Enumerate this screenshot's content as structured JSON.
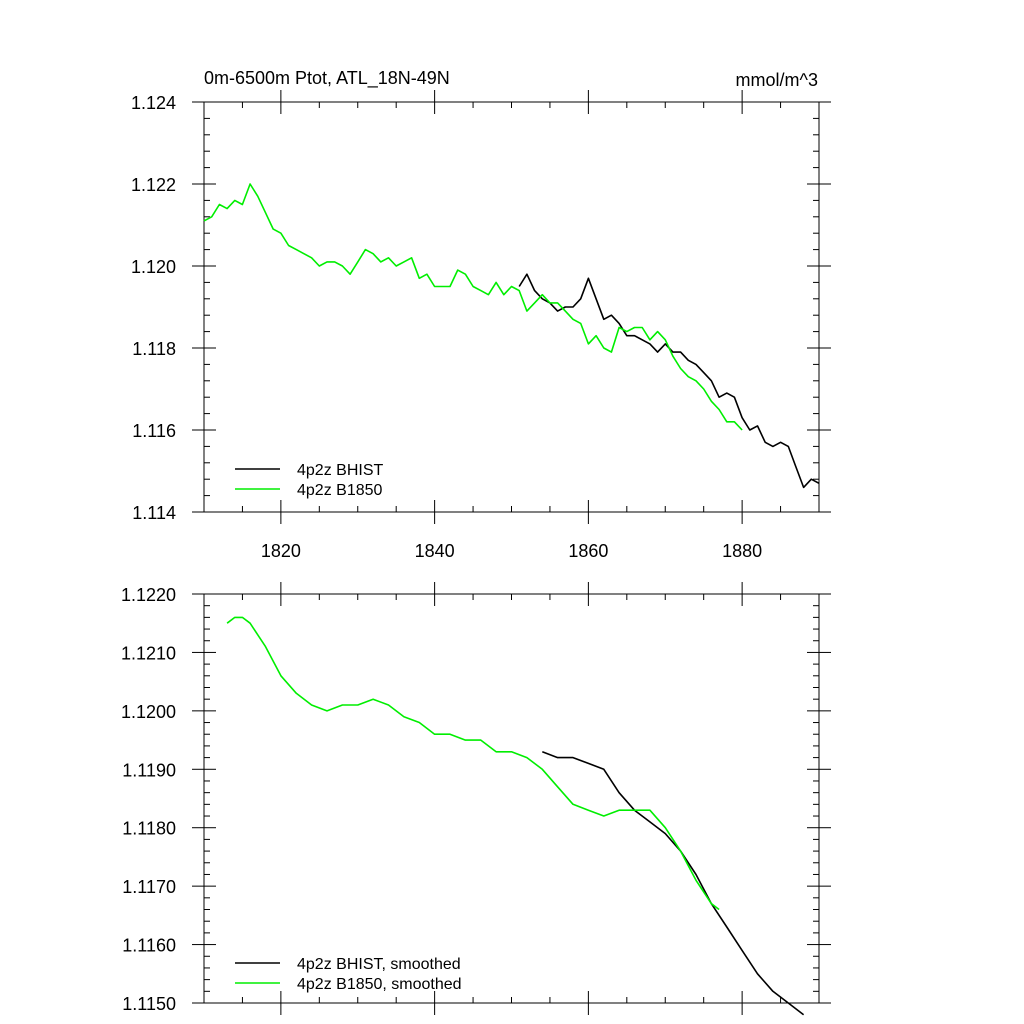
{
  "chart_data": [
    {
      "type": "line",
      "title": "0m-6500m Ptot, ATL_18N-49N",
      "units": "mmol/m^3",
      "xlim": [
        1810,
        1890
      ],
      "ylim": [
        1.114,
        1.124
      ],
      "xticks": [
        1820,
        1840,
        1860,
        1880
      ],
      "xtick_labels": [
        "1820",
        "1840",
        "1860",
        "1880"
      ],
      "yticks": [
        1.114,
        1.116,
        1.118,
        1.12,
        1.122,
        1.124
      ],
      "ytick_labels": [
        "1.114",
        "1.116",
        "1.118",
        "1.120",
        "1.122",
        "1.124"
      ],
      "legend_position": "bottom-left",
      "series": [
        {
          "name": "4p2z BHIST",
          "color": "#000000",
          "x": [
            1851,
            1852,
            1853,
            1854,
            1855,
            1856,
            1857,
            1858,
            1859,
            1860,
            1861,
            1862,
            1863,
            1864,
            1865,
            1866,
            1867,
            1868,
            1869,
            1870,
            1871,
            1872,
            1873,
            1874,
            1875,
            1876,
            1877,
            1878,
            1879,
            1880,
            1881,
            1882,
            1883,
            1884,
            1885,
            1886,
            1887,
            1888,
            1889,
            1890
          ],
          "y": [
            1.1195,
            1.1198,
            1.1194,
            1.1192,
            1.1191,
            1.1189,
            1.119,
            1.119,
            1.1192,
            1.1197,
            1.1192,
            1.1187,
            1.1188,
            1.1186,
            1.1183,
            1.1183,
            1.1182,
            1.1181,
            1.1179,
            1.1181,
            1.1179,
            1.1179,
            1.1177,
            1.1176,
            1.1174,
            1.1172,
            1.1168,
            1.1169,
            1.1168,
            1.1163,
            1.116,
            1.1161,
            1.1157,
            1.1156,
            1.1157,
            1.1156,
            1.1151,
            1.1146,
            1.1148,
            1.1147
          ]
        },
        {
          "name": "4p2z B1850",
          "color": "#00ee00",
          "x": [
            1810,
            1811,
            1812,
            1813,
            1814,
            1815,
            1816,
            1817,
            1818,
            1819,
            1820,
            1821,
            1822,
            1823,
            1824,
            1825,
            1826,
            1827,
            1828,
            1829,
            1830,
            1831,
            1832,
            1833,
            1834,
            1835,
            1836,
            1837,
            1838,
            1839,
            1840,
            1841,
            1842,
            1843,
            1844,
            1845,
            1846,
            1847,
            1848,
            1849,
            1850,
            1851,
            1852,
            1853,
            1854,
            1855,
            1856,
            1857,
            1858,
            1859,
            1860,
            1861,
            1862,
            1863,
            1864,
            1865,
            1866,
            1867,
            1868,
            1869,
            1870,
            1871,
            1872,
            1873,
            1874,
            1875,
            1876,
            1877,
            1878,
            1879,
            1880
          ],
          "y": [
            1.1211,
            1.1212,
            1.1215,
            1.1214,
            1.1216,
            1.1215,
            1.122,
            1.1217,
            1.1213,
            1.1209,
            1.1208,
            1.1205,
            1.1204,
            1.1203,
            1.1202,
            1.12,
            1.1201,
            1.1201,
            1.12,
            1.1198,
            1.1201,
            1.1204,
            1.1203,
            1.1201,
            1.1202,
            1.12,
            1.1201,
            1.1202,
            1.1197,
            1.1198,
            1.1195,
            1.1195,
            1.1195,
            1.1199,
            1.1198,
            1.1195,
            1.1194,
            1.1193,
            1.1196,
            1.1193,
            1.1195,
            1.1194,
            1.1189,
            1.1191,
            1.1193,
            1.1191,
            1.1191,
            1.1189,
            1.1187,
            1.1186,
            1.1181,
            1.1183,
            1.118,
            1.1179,
            1.1185,
            1.1184,
            1.1185,
            1.1185,
            1.1182,
            1.1184,
            1.1182,
            1.1178,
            1.1175,
            1.1173,
            1.1172,
            1.117,
            1.1167,
            1.1165,
            1.1162,
            1.1162,
            1.116
          ]
        }
      ]
    },
    {
      "type": "line",
      "xlim": [
        1810,
        1890
      ],
      "ylim": [
        1.115,
        1.122
      ],
      "yticks": [
        1.115,
        1.116,
        1.117,
        1.118,
        1.119,
        1.12,
        1.121,
        1.122
      ],
      "ytick_labels": [
        "1.1150",
        "1.1160",
        "1.1170",
        "1.1180",
        "1.1190",
        "1.1200",
        "1.1210",
        "1.1220"
      ],
      "legend_position": "bottom-left",
      "series": [
        {
          "name": "4p2z BHIST, smoothed",
          "color": "#000000",
          "x": [
            1854,
            1856,
            1858,
            1860,
            1862,
            1864,
            1866,
            1868,
            1870,
            1872,
            1874,
            1876,
            1878,
            1880,
            1882,
            1884,
            1886,
            1888
          ],
          "y": [
            1.1193,
            1.1192,
            1.1192,
            1.1191,
            1.119,
            1.1186,
            1.1183,
            1.1181,
            1.1179,
            1.1176,
            1.1172,
            1.1167,
            1.1163,
            1.1159,
            1.1155,
            1.1152,
            1.115,
            1.1148
          ]
        },
        {
          "name": "4p2z B1850, smoothed",
          "color": "#00ee00",
          "x": [
            1813,
            1814,
            1815,
            1816,
            1818,
            1820,
            1822,
            1824,
            1826,
            1828,
            1830,
            1832,
            1834,
            1836,
            1838,
            1840,
            1842,
            1844,
            1846,
            1848,
            1850,
            1852,
            1854,
            1856,
            1858,
            1860,
            1862,
            1864,
            1866,
            1868,
            1870,
            1872,
            1874,
            1876,
            1877
          ],
          "y": [
            1.1215,
            1.1216,
            1.1216,
            1.1215,
            1.1211,
            1.1206,
            1.1203,
            1.1201,
            1.12,
            1.1201,
            1.1201,
            1.1202,
            1.1201,
            1.1199,
            1.1198,
            1.1196,
            1.1196,
            1.1195,
            1.1195,
            1.1193,
            1.1193,
            1.1192,
            1.119,
            1.1187,
            1.1184,
            1.1183,
            1.1182,
            1.1183,
            1.1183,
            1.1183,
            1.118,
            1.1176,
            1.1171,
            1.1167,
            1.1166
          ]
        }
      ]
    }
  ]
}
